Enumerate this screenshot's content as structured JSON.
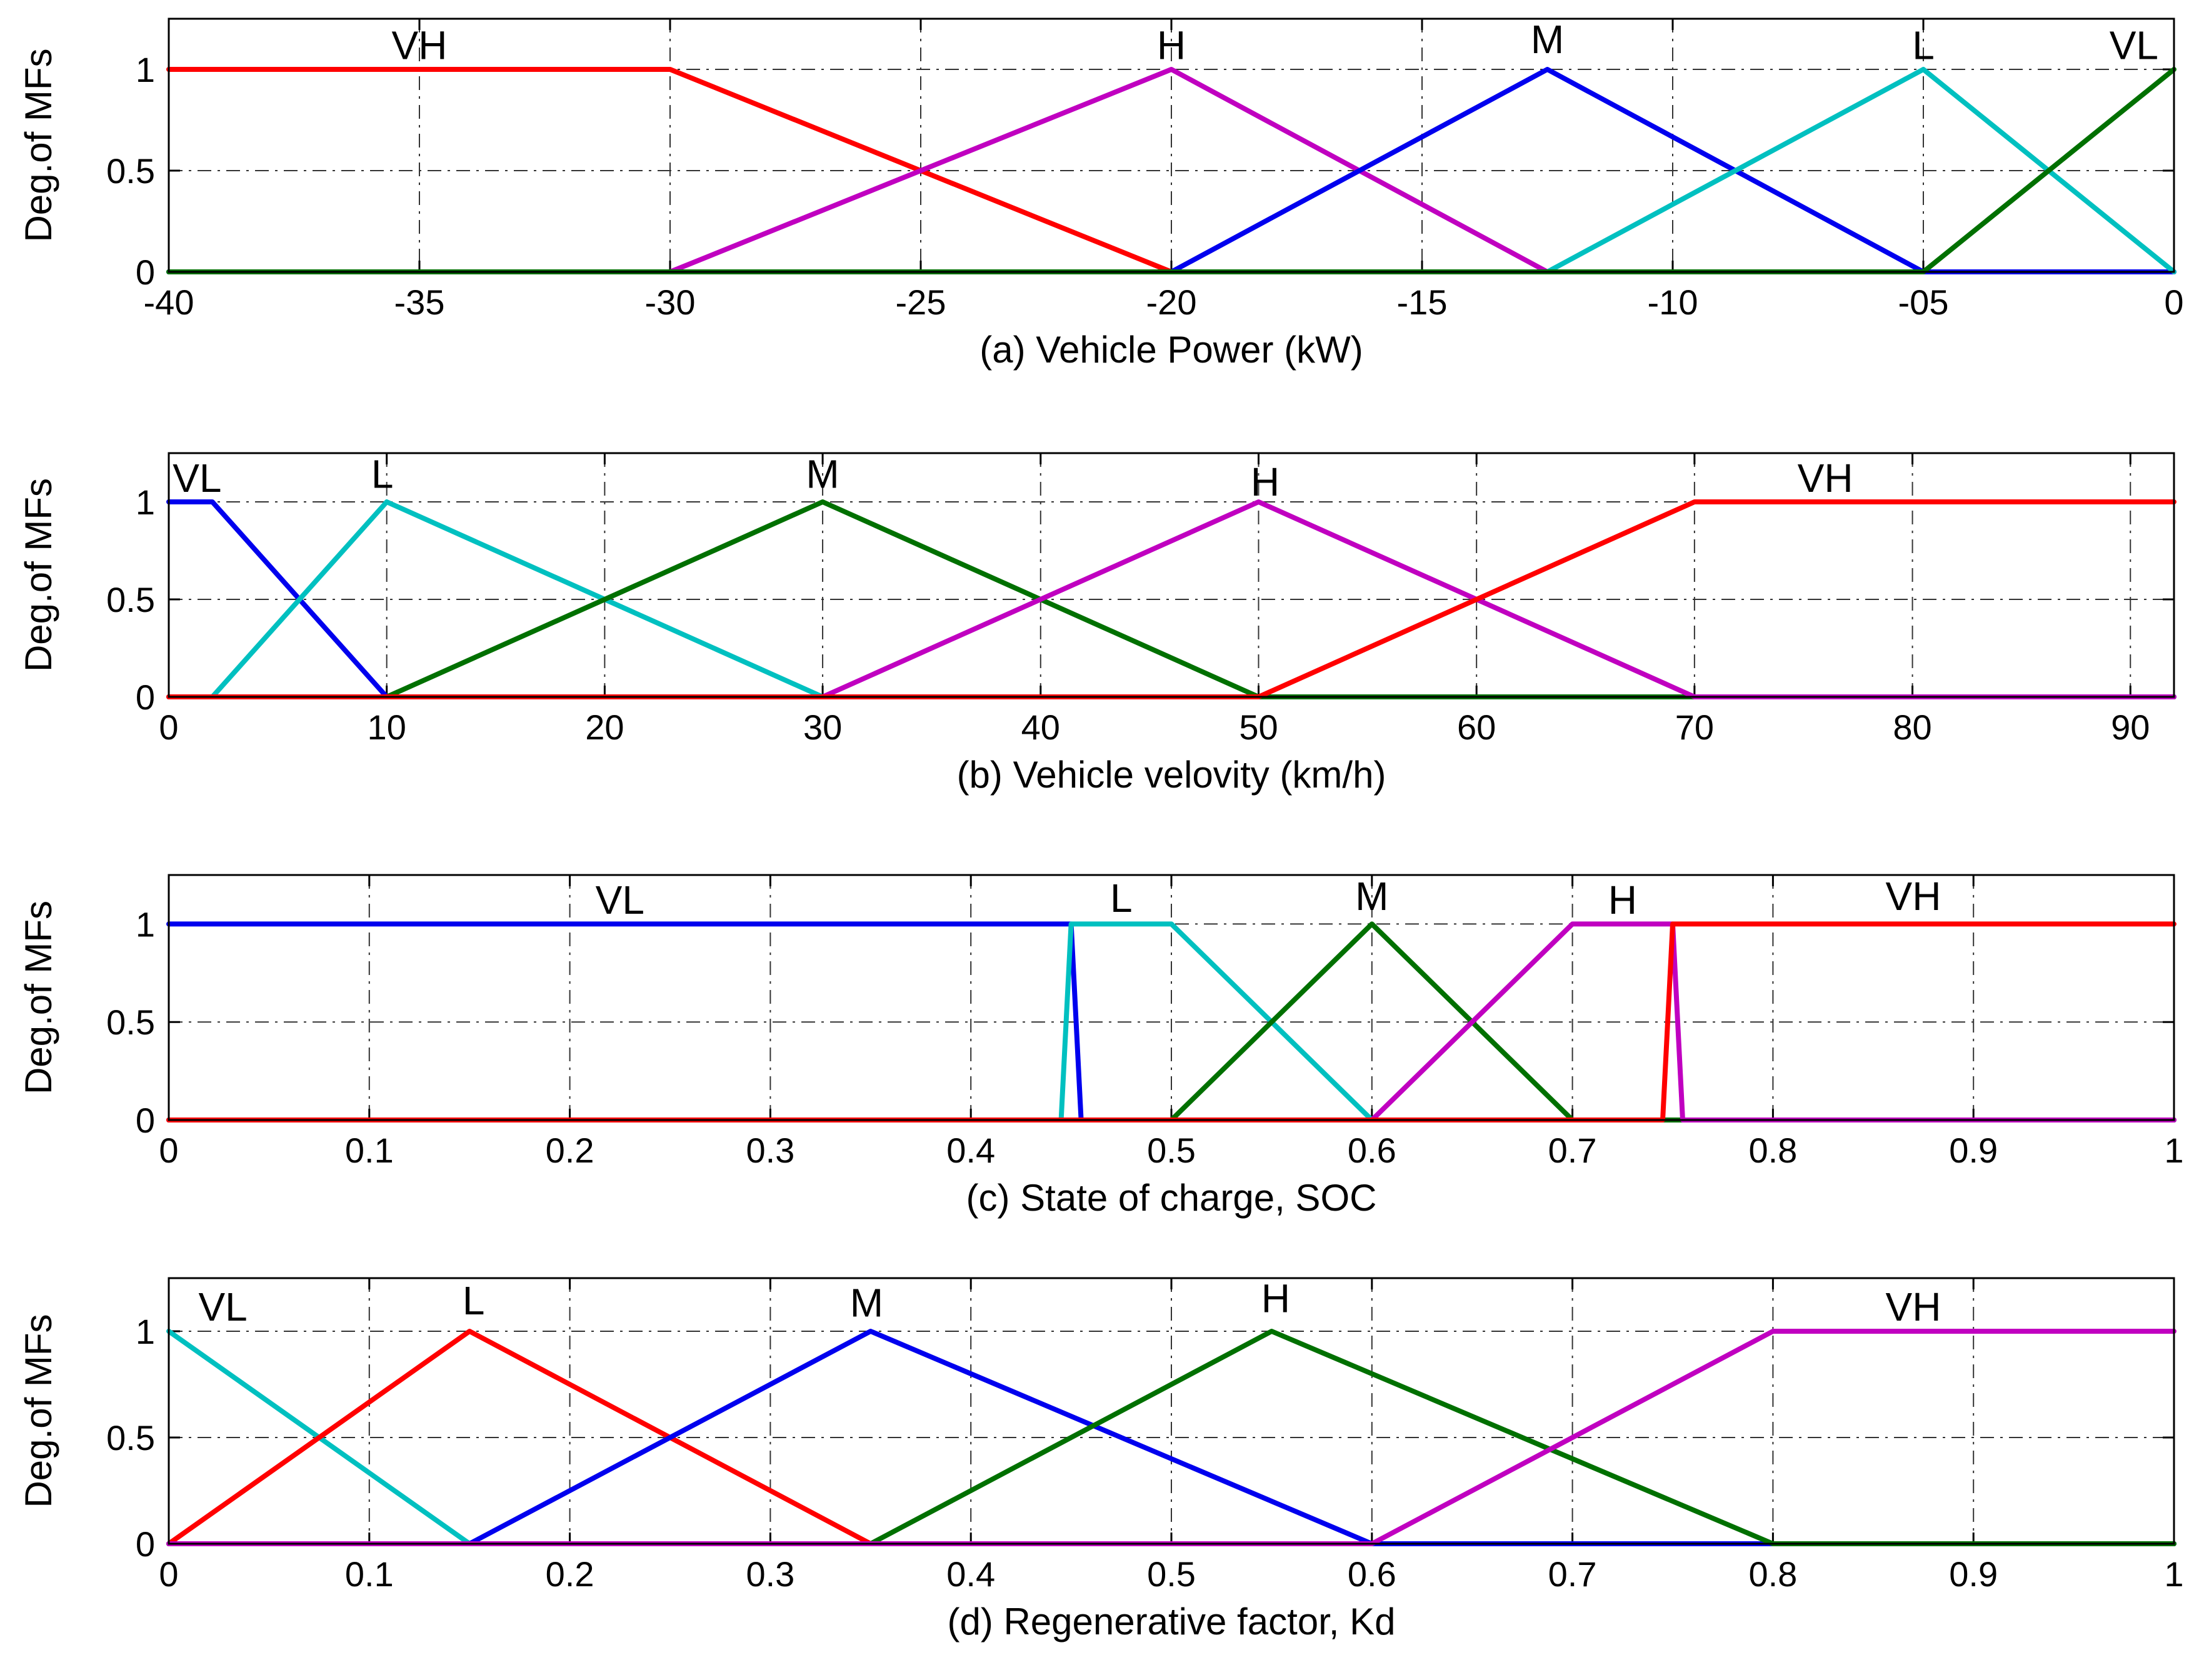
{
  "colors": {
    "red": "#ff0000",
    "magenta": "#c000c0",
    "blue": "#0000ee",
    "cyan": "#00c0c0",
    "green": "#007000"
  },
  "chart_data": [
    {
      "type": "line",
      "xlabel": "(a) Vehicle Power (kW)",
      "ylabel": "Deg.of MFs",
      "xlim": [
        -40,
        0
      ],
      "ylim": [
        0,
        1.25
      ],
      "xticks": [
        -40,
        -35,
        -30,
        -25,
        -20,
        -15,
        -10,
        -5,
        0
      ],
      "xtick_labels": [
        "-40",
        "-35",
        "-30",
        "-25",
        "-20",
        "-15",
        "-10",
        "-05",
        "0"
      ],
      "yticks": [
        0,
        0.5,
        1
      ],
      "ytick_labels": [
        "0",
        "0.5",
        "1"
      ],
      "series": [
        {
          "name": "VH",
          "color": "red",
          "x": [
            -40,
            -30,
            -20,
            0
          ],
          "y": [
            1,
            1,
            0,
            0
          ],
          "label_x": -35,
          "label_y": 1.02
        },
        {
          "name": "H",
          "color": "magenta",
          "x": [
            -40,
            -30,
            -20,
            -12.5,
            0
          ],
          "y": [
            0,
            0,
            1,
            0,
            0
          ],
          "label_x": -20,
          "label_y": 1.02
        },
        {
          "name": "M",
          "color": "blue",
          "x": [
            -40,
            -20,
            -12.5,
            -5,
            0
          ],
          "y": [
            0,
            0,
            1,
            0,
            0
          ],
          "label_x": -12.5,
          "label_y": 1.05
        },
        {
          "name": "L",
          "color": "cyan",
          "x": [
            -40,
            -12.5,
            -5,
            0
          ],
          "y": [
            0,
            0,
            1,
            0
          ],
          "label_x": -5,
          "label_y": 1.02
        },
        {
          "name": "VL",
          "color": "green",
          "x": [
            -40,
            -5,
            0
          ],
          "y": [
            0,
            0,
            1
          ],
          "label_x": -0.8,
          "label_y": 1.02
        }
      ]
    },
    {
      "type": "line",
      "xlabel": "(b) Vehicle velovity (km/h)",
      "ylabel": "Deg.of MFs",
      "xlim": [
        0,
        92
      ],
      "ylim": [
        0,
        1.25
      ],
      "xticks": [
        0,
        10,
        20,
        30,
        40,
        50,
        60,
        70,
        80,
        90
      ],
      "xtick_labels": [
        "0",
        "10",
        "20",
        "30",
        "40",
        "50",
        "60",
        "70",
        "80",
        "90"
      ],
      "yticks": [
        0,
        0.5,
        1
      ],
      "ytick_labels": [
        "0",
        "0.5",
        "1"
      ],
      "series": [
        {
          "name": "VL",
          "color": "blue",
          "x": [
            0,
            2,
            10,
            92
          ],
          "y": [
            1,
            1,
            0,
            0
          ],
          "label_x": 1.3,
          "label_y": 1.02
        },
        {
          "name": "L",
          "color": "cyan",
          "x": [
            0,
            2,
            10,
            30,
            92
          ],
          "y": [
            0,
            0,
            1,
            0,
            0
          ],
          "label_x": 9.8,
          "label_y": 1.04
        },
        {
          "name": "M",
          "color": "green",
          "x": [
            0,
            10,
            30,
            50,
            92
          ],
          "y": [
            0,
            0,
            1,
            0,
            0
          ],
          "label_x": 30,
          "label_y": 1.04
        },
        {
          "name": "H",
          "color": "magenta",
          "x": [
            0,
            30,
            50,
            70,
            92
          ],
          "y": [
            0,
            0,
            1,
            0,
            0
          ],
          "label_x": 50.3,
          "label_y": 1.0
        },
        {
          "name": "VH",
          "color": "red",
          "x": [
            0,
            50,
            70,
            92
          ],
          "y": [
            0,
            0,
            1,
            1
          ],
          "label_x": 76,
          "label_y": 1.02
        }
      ]
    },
    {
      "type": "line",
      "xlabel": "(c) State of charge, SOC",
      "ylabel": "Deg.of MFs",
      "xlim": [
        0,
        1
      ],
      "ylim": [
        0,
        1.25
      ],
      "xticks": [
        0,
        0.1,
        0.2,
        0.3,
        0.4,
        0.5,
        0.6,
        0.7,
        0.8,
        0.9,
        1
      ],
      "xtick_labels": [
        "0",
        "0.1",
        "0.2",
        "0.3",
        "0.4",
        "0.5",
        "0.6",
        "0.7",
        "0.8",
        "0.9",
        "1"
      ],
      "yticks": [
        0,
        0.5,
        1
      ],
      "ytick_labels": [
        "0",
        "0.5",
        "1"
      ],
      "series": [
        {
          "name": "VL",
          "color": "blue",
          "x": [
            0,
            0.45,
            0.455,
            1
          ],
          "y": [
            1,
            1,
            0,
            0
          ],
          "label_x": 0.225,
          "label_y": 1.02
        },
        {
          "name": "L",
          "color": "cyan",
          "x": [
            0,
            0.445,
            0.45,
            0.5,
            0.6,
            1
          ],
          "y": [
            0,
            0,
            1,
            1,
            0,
            0
          ],
          "label_x": 0.475,
          "label_y": 1.03
        },
        {
          "name": "M",
          "color": "green",
          "x": [
            0,
            0.5,
            0.6,
            0.7,
            1
          ],
          "y": [
            0,
            0,
            1,
            0,
            0
          ],
          "label_x": 0.6,
          "label_y": 1.04
        },
        {
          "name": "H",
          "color": "magenta",
          "x": [
            0,
            0.6,
            0.7,
            0.75,
            0.755,
            1
          ],
          "y": [
            0,
            0,
            1,
            1,
            0,
            0
          ],
          "label_x": 0.725,
          "label_y": 1.02
        },
        {
          "name": "VH",
          "color": "red",
          "x": [
            0,
            0.745,
            0.75,
            1
          ],
          "y": [
            0,
            0,
            1,
            1
          ],
          "label_x": 0.87,
          "label_y": 1.04
        }
      ]
    },
    {
      "type": "line",
      "xlabel": "(d) Regenerative factor, Kd",
      "ylabel": "Deg.of MFs",
      "xlim": [
        0,
        1
      ],
      "ylim": [
        0,
        1.25
      ],
      "xticks": [
        0,
        0.1,
        0.2,
        0.3,
        0.4,
        0.5,
        0.6,
        0.7,
        0.8,
        0.9,
        1
      ],
      "xtick_labels": [
        "0",
        "0.1",
        "0.2",
        "0.3",
        "0.4",
        "0.5",
        "0.6",
        "0.7",
        "0.8",
        "0.9",
        "1"
      ],
      "yticks": [
        0,
        0.5,
        1
      ],
      "ytick_labels": [
        "0",
        "0.5",
        "1"
      ],
      "series": [
        {
          "name": "VL",
          "color": "cyan",
          "x": [
            0,
            0.15,
            1
          ],
          "y": [
            1,
            0,
            0
          ],
          "label_x": 0.027,
          "label_y": 1.02
        },
        {
          "name": "L",
          "color": "red",
          "x": [
            0,
            0.15,
            0.35,
            1
          ],
          "y": [
            0,
            1,
            0,
            0
          ],
          "label_x": 0.152,
          "label_y": 1.05
        },
        {
          "name": "M",
          "color": "blue",
          "x": [
            0,
            0.15,
            0.35,
            0.6,
            1
          ],
          "y": [
            0,
            0,
            1,
            0,
            0
          ],
          "label_x": 0.348,
          "label_y": 1.04
        },
        {
          "name": "H",
          "color": "green",
          "x": [
            0,
            0.35,
            0.55,
            0.8,
            1
          ],
          "y": [
            0,
            0,
            1,
            0,
            0
          ],
          "label_x": 0.552,
          "label_y": 1.06
        },
        {
          "name": "VH",
          "color": "magenta",
          "x": [
            0,
            0.6,
            0.8,
            1
          ],
          "y": [
            0,
            0,
            1,
            1
          ],
          "label_x": 0.87,
          "label_y": 1.02
        }
      ]
    }
  ]
}
